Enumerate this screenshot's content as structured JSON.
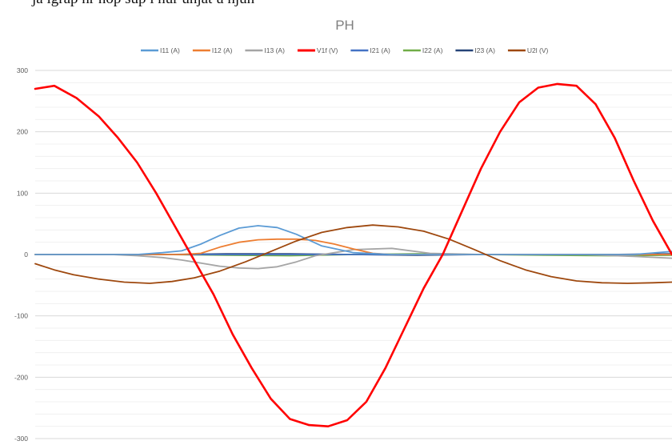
{
  "cropped_caption": "ja igrap hr nop sup i nur unjat u njun",
  "chart_data": {
    "type": "line",
    "title": "PH",
    "xlabel": "",
    "ylabel": "",
    "ylim": [
      -300,
      300
    ],
    "yticks": [
      300,
      200,
      100,
      0,
      -100,
      -200,
      -300
    ],
    "grid": true,
    "legend_position": "top",
    "x_range": [
      0,
      1000
    ],
    "series": [
      {
        "name": "I11 (A)",
        "color": "#5b9bd5",
        "x": [
          0,
          80,
          160,
          200,
          230,
          260,
          290,
          320,
          350,
          380,
          410,
          450,
          500,
          560,
          620,
          700,
          780,
          860,
          940,
          1000
        ],
        "y": [
          0,
          0,
          0,
          3,
          6,
          17,
          31,
          43,
          47,
          44,
          33,
          14,
          3,
          0,
          0,
          0,
          0,
          0,
          0,
          5
        ]
      },
      {
        "name": "I12 (A)",
        "color": "#ed7d31",
        "x": [
          0,
          230,
          260,
          290,
          320,
          350,
          380,
          410,
          440,
          470,
          500,
          530,
          560,
          620,
          700,
          780,
          860,
          940,
          1000
        ],
        "y": [
          0,
          0,
          2,
          12,
          20,
          24,
          25,
          25,
          23,
          17,
          9,
          2,
          0,
          0,
          0,
          0,
          0,
          0,
          0
        ]
      },
      {
        "name": "I13 (A)",
        "color": "#a5a5a5",
        "x": [
          0,
          120,
          160,
          200,
          230,
          260,
          290,
          320,
          350,
          380,
          410,
          440,
          470,
          500,
          560,
          620,
          700,
          780,
          860,
          940,
          1000
        ],
        "y": [
          0,
          0,
          -2,
          -5,
          -9,
          -14,
          -19,
          -22,
          -23,
          -20,
          -12,
          -2,
          3,
          8,
          10,
          2,
          0,
          0,
          0,
          -3,
          -6
        ]
      },
      {
        "name": "V1f (V)",
        "color": "#ff0000",
        "x": [
          0,
          30,
          65,
          100,
          130,
          160,
          190,
          220,
          250,
          280,
          310,
          340,
          370,
          400,
          430,
          460,
          490,
          520,
          550,
          580,
          610,
          640,
          670,
          700,
          730,
          760,
          790,
          820,
          850,
          880,
          910,
          940,
          970,
          1000
        ],
        "y": [
          270,
          275,
          255,
          225,
          190,
          150,
          100,
          45,
          -10,
          -65,
          -130,
          -185,
          -235,
          -268,
          -278,
          -280,
          -270,
          -240,
          -185,
          -120,
          -55,
          0,
          70,
          140,
          200,
          248,
          272,
          278,
          275,
          245,
          190,
          120,
          55,
          0
        ]
      },
      {
        "name": "I21 (A)",
        "color": "#4472c4",
        "x": [
          0,
          100,
          200,
          300,
          400,
          500,
          600,
          700,
          800,
          900,
          1000
        ],
        "y": [
          0,
          0,
          0,
          0,
          0,
          0,
          0,
          0,
          0,
          0,
          0
        ]
      },
      {
        "name": "I22 (A)",
        "color": "#70ad47",
        "x": [
          0,
          100,
          200,
          300,
          400,
          500,
          600,
          700,
          800,
          900,
          1000
        ],
        "y": [
          0,
          0,
          0,
          -1,
          -2,
          0,
          1,
          0,
          -1,
          -2,
          -1
        ]
      },
      {
        "name": "I23 (A)",
        "color": "#264478",
        "x": [
          0,
          100,
          200,
          300,
          400,
          500,
          600,
          700,
          800,
          900,
          1000
        ],
        "y": [
          0,
          0,
          0,
          1,
          1,
          0,
          -1,
          0,
          0,
          0,
          1
        ]
      },
      {
        "name": "U2l (V)",
        "color": "#9e480e",
        "x": [
          0,
          30,
          60,
          100,
          140,
          180,
          215,
          250,
          290,
          330,
          370,
          410,
          450,
          490,
          530,
          570,
          610,
          650,
          690,
          730,
          770,
          810,
          850,
          890,
          930,
          970,
          1000
        ],
        "y": [
          -15,
          -25,
          -33,
          -40,
          -45,
          -47,
          -44,
          -38,
          -27,
          -12,
          5,
          22,
          36,
          44,
          48,
          45,
          38,
          25,
          8,
          -10,
          -25,
          -36,
          -43,
          -46,
          -47,
          -46,
          -45
        ]
      }
    ]
  }
}
